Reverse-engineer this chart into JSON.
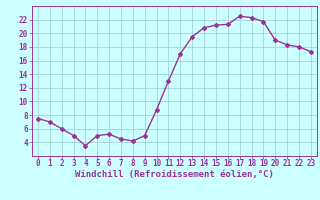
{
  "x": [
    0,
    1,
    2,
    3,
    4,
    5,
    6,
    7,
    8,
    9,
    10,
    11,
    12,
    13,
    14,
    15,
    16,
    17,
    18,
    19,
    20,
    21,
    22,
    23
  ],
  "y": [
    7.5,
    7.0,
    6.0,
    5.0,
    3.5,
    5.0,
    5.2,
    4.5,
    4.2,
    5.0,
    8.8,
    13.0,
    17.0,
    19.5,
    20.8,
    21.2,
    21.3,
    22.5,
    22.3,
    21.7,
    19.0,
    18.3,
    18.0,
    17.3
  ],
  "line_color": "#993399",
  "marker": "D",
  "markersize": 2,
  "linewidth": 1.0,
  "bg_color": "#ccffff",
  "grid_color": "#99cccc",
  "xlabel": "Windchill (Refroidissement éolien,°C)",
  "xlabel_color": "#993399",
  "xlabel_fontsize": 6.5,
  "tick_color": "#993399",
  "tick_fontsize": 5.5,
  "ylim": [
    2,
    24
  ],
  "xlim": [
    -0.5,
    23.5
  ],
  "yticks": [
    4,
    6,
    8,
    10,
    12,
    14,
    16,
    18,
    20,
    22
  ],
  "xticks": [
    0,
    1,
    2,
    3,
    4,
    5,
    6,
    7,
    8,
    9,
    10,
    11,
    12,
    13,
    14,
    15,
    16,
    17,
    18,
    19,
    20,
    21,
    22,
    23
  ]
}
